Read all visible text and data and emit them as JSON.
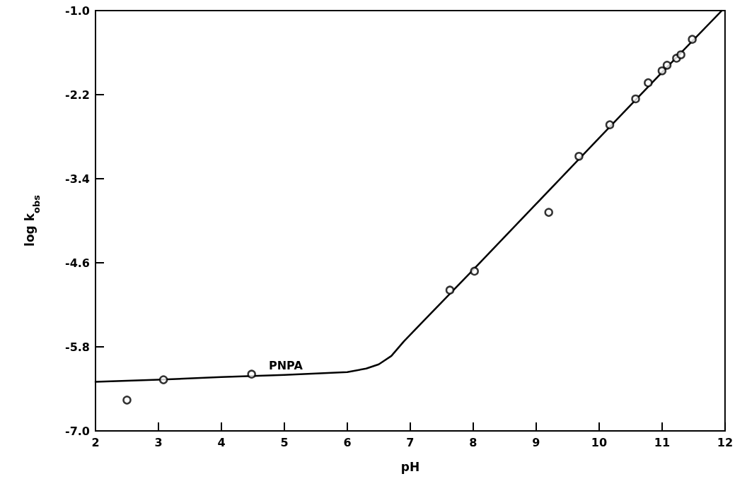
{
  "chart_data": {
    "type": "scatter",
    "xlabel": "pH",
    "ylabel": "log k$_{obs}$",
    "annotations": [
      "PNPA"
    ],
    "xlim": [
      2,
      12
    ],
    "xticks": [
      2,
      3,
      4,
      5,
      6,
      7,
      8,
      9,
      10,
      11,
      12
    ],
    "ylim": [
      -7.0,
      -1.0
    ],
    "yticks": [
      {
        "value": -7.0,
        "label": "-7.0"
      },
      {
        "value": -5.8,
        "label": "-5.8"
      },
      {
        "value": -4.6,
        "label": "-4.6"
      },
      {
        "value": -3.4,
        "label": "-3.4"
      },
      {
        "value": -2.2,
        "label": "-2.2"
      },
      {
        "value": -1.0,
        "label": "-1.0"
      }
    ],
    "grid": false,
    "marker": "circle",
    "series": [
      {
        "color": "#000000",
        "x": [
          2.5,
          3.08,
          4.48,
          7.63,
          8.02,
          9.2,
          9.68,
          10.17,
          10.58,
          10.78,
          11.0,
          11.08,
          11.23,
          11.3,
          11.48
        ],
        "values": [
          -6.56,
          -6.27,
          -6.19,
          -4.99,
          -4.72,
          -3.88,
          -3.08,
          -2.63,
          -2.26,
          -2.03,
          -1.86,
          -1.78,
          -1.68,
          -1.63,
          -1.41
        ]
      },
      {
        "type": "line",
        "color": "#000000",
        "line_style": "solid",
        "marker": "none",
        "x": [
          2,
          3,
          4,
          5,
          6,
          6.3,
          6.5,
          6.7,
          6.9,
          7.2,
          8,
          9,
          10,
          11,
          11.95
        ],
        "values": [
          -6.3,
          -6.27,
          -6.23,
          -6.2,
          -6.16,
          -6.11,
          -6.05,
          -5.93,
          -5.72,
          -5.44,
          -4.7,
          -3.76,
          -2.82,
          -1.88,
          -1.0
        ]
      }
    ]
  }
}
